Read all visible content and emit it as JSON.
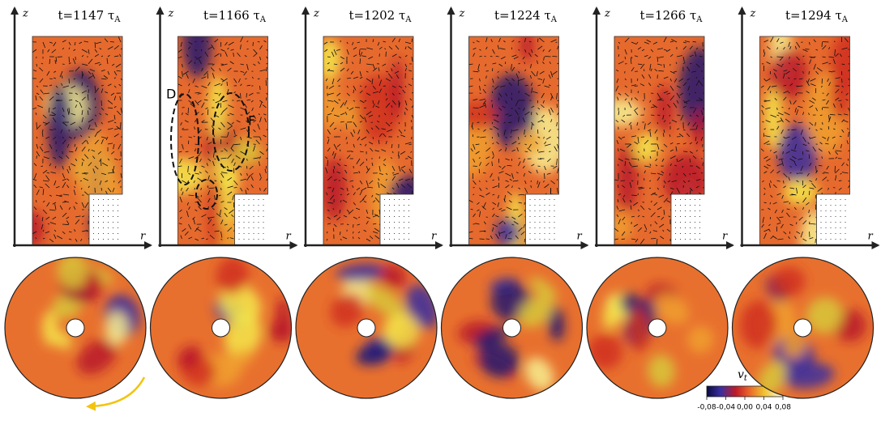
{
  "panels": [
    {
      "time": "t=1147 τ",
      "sub": "A"
    },
    {
      "time": "t=1166 τ",
      "sub": "A"
    },
    {
      "time": "t=1202 τ",
      "sub": "A"
    },
    {
      "time": "t=1224 τ",
      "sub": "A"
    },
    {
      "time": "t=1266 τ",
      "sub": "A"
    },
    {
      "time": "t=1294 τ",
      "sub": "A"
    }
  ],
  "axis_labels": {
    "z": "z",
    "r": "r"
  },
  "annotations": [
    "D",
    "F"
  ],
  "colorbar": {
    "label": "v",
    "label_sub": "t",
    "range": [
      -0.08,
      0.08
    ],
    "ticks": [
      {
        "value": -0.08,
        "label": "-0,08"
      },
      {
        "value": -0.04,
        "label": "-0,04"
      },
      {
        "value": 0,
        "label": "0,00"
      },
      {
        "value": 0.04,
        "label": "0,04"
      },
      {
        "value": 0.08,
        "label": "0,08"
      }
    ]
  }
}
